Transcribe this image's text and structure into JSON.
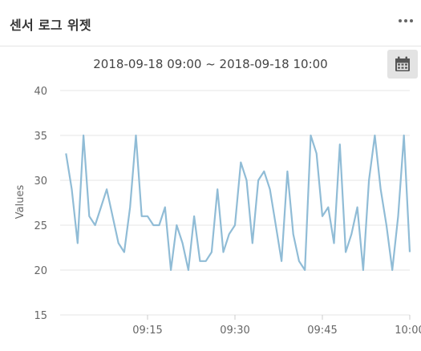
{
  "widget": {
    "title": "센서 로그 위젯",
    "more_icon": "more-horizontal-icon",
    "range_label": "2018-09-18 09:00 ~ 2018-09-18 10:00",
    "calendar_icon": "calendar-icon"
  },
  "chart_data": {
    "type": "line",
    "ylabel": "Values",
    "ylim": [
      15,
      40
    ],
    "yticks": [
      15,
      20,
      25,
      30,
      35,
      40
    ],
    "xlim": [
      0,
      60
    ],
    "xticks": [
      {
        "value": 15,
        "label": "09:15"
      },
      {
        "value": 30,
        "label": "09:30"
      },
      {
        "value": 45,
        "label": "09:45"
      },
      {
        "value": 60,
        "label": "10:00"
      }
    ],
    "grid": true,
    "series": [
      {
        "color": "#90bcd6",
        "points": [
          [
            1,
            33
          ],
          [
            2,
            29
          ],
          [
            3,
            23
          ],
          [
            4,
            35
          ],
          [
            5,
            26
          ],
          [
            6,
            25
          ],
          [
            7,
            27
          ],
          [
            8,
            29
          ],
          [
            9,
            26
          ],
          [
            10,
            23
          ],
          [
            11,
            22
          ],
          [
            12,
            27
          ],
          [
            13,
            35
          ],
          [
            14,
            26
          ],
          [
            15,
            26
          ],
          [
            16,
            25
          ],
          [
            17,
            25
          ],
          [
            18,
            27
          ],
          [
            19,
            20
          ],
          [
            20,
            25
          ],
          [
            21,
            23
          ],
          [
            22,
            20
          ],
          [
            23,
            26
          ],
          [
            24,
            21
          ],
          [
            25,
            21
          ],
          [
            26,
            22
          ],
          [
            27,
            29
          ],
          [
            28,
            22
          ],
          [
            29,
            24
          ],
          [
            30,
            25
          ],
          [
            31,
            32
          ],
          [
            32,
            30
          ],
          [
            33,
            23
          ],
          [
            34,
            30
          ],
          [
            35,
            31
          ],
          [
            36,
            29
          ],
          [
            37,
            25
          ],
          [
            38,
            21
          ],
          [
            39,
            31
          ],
          [
            40,
            24
          ],
          [
            41,
            21
          ],
          [
            42,
            20
          ],
          [
            43,
            35
          ],
          [
            44,
            33
          ],
          [
            45,
            26
          ],
          [
            46,
            27
          ],
          [
            47,
            23
          ],
          [
            48,
            34
          ],
          [
            49,
            22
          ],
          [
            50,
            24
          ],
          [
            51,
            27
          ],
          [
            52,
            20
          ],
          [
            53,
            30
          ],
          [
            54,
            35
          ],
          [
            55,
            29
          ],
          [
            56,
            25
          ],
          [
            57,
            20
          ],
          [
            58,
            26
          ],
          [
            59,
            35
          ],
          [
            60,
            22
          ]
        ]
      }
    ]
  }
}
